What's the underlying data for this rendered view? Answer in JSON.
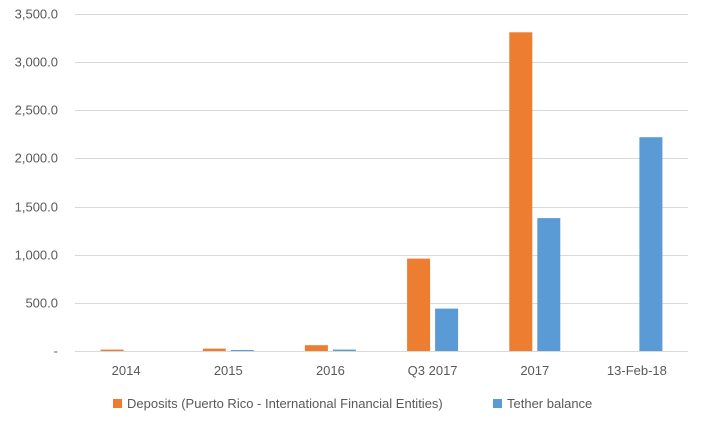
{
  "chart_data": {
    "type": "bar",
    "title": "",
    "xlabel": "",
    "ylabel": "",
    "categories": [
      "2014",
      "2015",
      "2016",
      "Q3 2017",
      "2017",
      "13-Feb-18"
    ],
    "series": [
      {
        "name": "Deposits (Puerto Rico - International Financial Entities)",
        "color": "#ED7D31",
        "values": [
          15,
          25,
          60,
          960,
          3310,
          0
        ]
      },
      {
        "name": "Tether balance",
        "color": "#5B9BD5",
        "values": [
          0,
          10,
          15,
          440,
          1380,
          2220
        ]
      }
    ],
    "ylim": [
      0,
      3500
    ],
    "yticks": [
      0,
      500,
      1000,
      1500,
      2000,
      2500,
      3000,
      3500
    ],
    "ytick_labels": [
      "-",
      "500.0",
      "1,000.0",
      "1,500.0",
      "2,000.0",
      "2,500.0",
      "3,000.0",
      "3,500.0"
    ],
    "grid": true,
    "legend_position": "bottom"
  }
}
